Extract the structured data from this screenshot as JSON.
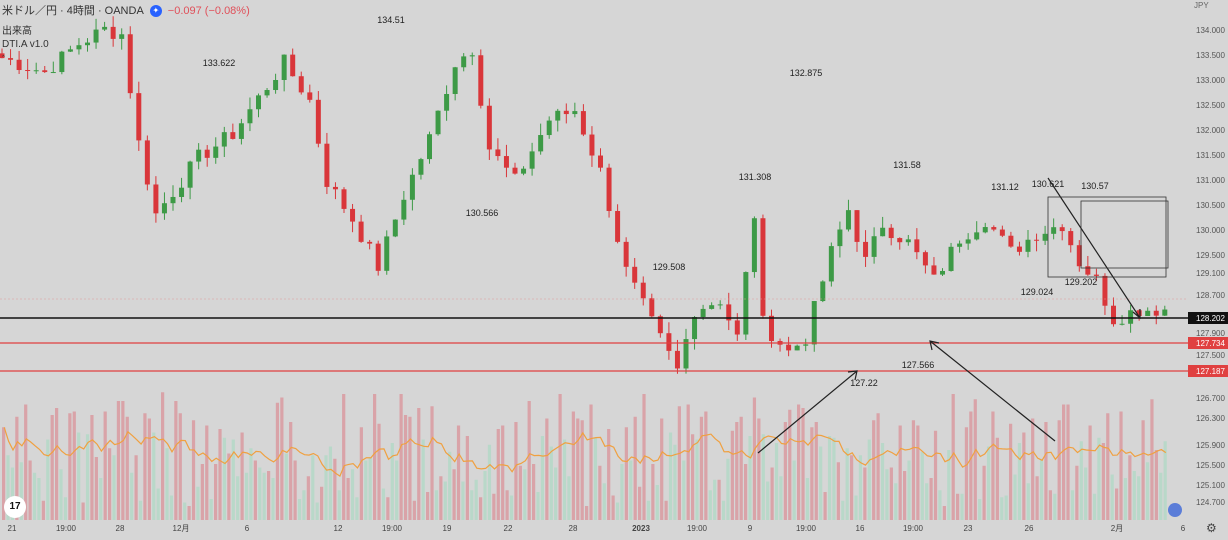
{
  "header": {
    "symbol": "米ドル／円 · 4時間 · OANDA",
    "change": "−0.097 (−0.08%)",
    "volume_label": "出来高",
    "indicator_label": "DTI.A v1.0",
    "currency": "JPY"
  },
  "chart_data": {
    "type": "candlestick",
    "y_axis_ticks": [
      "134.000",
      "133.500",
      "133.000",
      "132.500",
      "132.000",
      "131.500",
      "131.000",
      "130.500",
      "130.000",
      "129.500",
      "129.100",
      "128.700",
      "128.202",
      "127.900",
      "127.734",
      "127.500",
      "127.187",
      "126.700",
      "126.300",
      "125.900",
      "125.500",
      "125.100",
      "124.700"
    ],
    "x_axis_ticks": [
      "21",
      "19:00",
      "28",
      "12月",
      "6",
      "12",
      "19:00",
      "19",
      "22",
      "28",
      "2023",
      "19:00",
      "9",
      "19:00",
      "16",
      "19:00",
      "23",
      "26",
      "2月",
      "6"
    ],
    "price_labels": [
      "133.622",
      "134.51",
      "130.566",
      "129.508",
      "131.308",
      "132.875",
      "131.58",
      "127.22",
      "127.566",
      "131.12",
      "130.621",
      "130.57",
      "129.024",
      "129.202"
    ],
    "price_lines": [
      {
        "value": "128.202",
        "color": "#111111"
      },
      {
        "value": "127.734",
        "color": "#e04040"
      },
      {
        "value": "127.187",
        "color": "#e04040"
      }
    ],
    "colors": {
      "up": "#3d9a46",
      "down": "#d9363a",
      "vol_up": "#b9d8c9",
      "vol_down": "#d9a3a8",
      "ma": "#f0a040"
    },
    "keypoints": [
      [
        0,
        133.9
      ],
      [
        5,
        133.6
      ],
      [
        9,
        134.2
      ],
      [
        12,
        134.5
      ],
      [
        14,
        134.4
      ],
      [
        16,
        132.1
      ],
      [
        18,
        130.6
      ],
      [
        23,
        131.8
      ],
      [
        27,
        132.3
      ],
      [
        33,
        133.8
      ],
      [
        36,
        133.0
      ],
      [
        38,
        131.3
      ],
      [
        41,
        130.5
      ],
      [
        44,
        129.5
      ],
      [
        47,
        131.0
      ],
      [
        50,
        132.2
      ],
      [
        53,
        133.8
      ],
      [
        55,
        134.1
      ],
      [
        57,
        132.0
      ],
      [
        60,
        131.3
      ],
      [
        64,
        132.6
      ],
      [
        67,
        132.8
      ],
      [
        70,
        131.5
      ],
      [
        73,
        129.4
      ],
      [
        76,
        128.3
      ],
      [
        79,
        127.3
      ],
      [
        81,
        128.6
      ],
      [
        84,
        128.8
      ],
      [
        86,
        128.0
      ],
      [
        88,
        130.6
      ],
      [
        89,
        128.3
      ],
      [
        92,
        127.7
      ],
      [
        94,
        128.0
      ],
      [
        97,
        129.8
      ],
      [
        99,
        130.7
      ],
      [
        101,
        129.6
      ],
      [
        103,
        130.4
      ],
      [
        106,
        130.0
      ],
      [
        109,
        129.2
      ],
      [
        112,
        130.1
      ],
      [
        115,
        130.5
      ],
      [
        118,
        129.8
      ],
      [
        121,
        130.2
      ],
      [
        124,
        130.4
      ],
      [
        126,
        129.6
      ],
      [
        128,
        129.2
      ],
      [
        130,
        128.4
      ],
      [
        133,
        128.6
      ],
      [
        136,
        128.6
      ]
    ],
    "volumes": [
      53,
      37,
      30,
      59,
      33,
      66,
      34,
      27,
      24,
      11,
      46,
      60,
      64,
      29,
      13,
      61,
      62,
      50,
      10,
      49,
      60,
      36,
      24,
      62,
      41,
      37,
      68,
      68,
      59,
      27,
      37,
      11,
      61,
      58,
      50,
      18,
      73,
      41,
      14,
      68,
      61,
      10,
      8,
      57,
      19,
      32,
      54,
      12,
      32,
      52,
      47,
      38,
      46,
      25,
      50,
      27,
      41,
      34,
      30,
      27,
      28,
      24,
      67,
      70,
      38,
      56,
      34,
      12,
      17,
      25,
      37,
      10,
      19,
      37,
      42,
      35,
      17,
      72,
      24,
      29,
      13,
      53,
      34,
      36,
      72,
      55,
      18,
      13,
      44,
      34,
      72,
      60,
      59,
      11,
      64,
      46,
      16,
      65,
      17,
      25,
      22,
      39,
      29,
      54,
      22,
      48,
      17,
      23,
      13,
      28,
      43,
      15,
      52,
      54,
      17,
      14,
      56,
      31,
      29,
      68,
      32,
      16,
      48,
      58,
      42,
      30,
      72,
      46,
      25,
      62,
      58,
      57,
      8,
      66,
      47,
      31,
      21,
      52,
      14,
      10,
      32,
      53,
      34,
      59,
      19,
      72,
      11,
      32,
      20,
      58,
      11,
      50,
      43,
      65,
      34,
      66,
      49,
      46,
      59,
      62,
      17,
      23,
      23,
      11,
      35,
      51,
      56,
      59,
      32,
      48,
      70,
      58,
      49,
      22,
      30,
      44,
      25,
      56,
      63,
      34,
      66,
      64,
      24,
      53,
      56,
      42,
      16,
      48,
      47,
      33,
      11,
      41,
      37,
      14,
      37,
      30,
      46,
      57,
      61,
      44,
      29,
      30,
      21,
      54,
      28,
      34,
      57,
      54,
      39,
      21,
      24,
      51,
      17,
      8,
      40,
      72,
      15,
      15,
      53,
      62,
      69,
      12,
      31,
      42,
      62,
      47,
      13,
      14,
      55,
      26,
      44,
      50,
      21,
      58,
      25,
      35,
      56,
      17,
      15,
      57,
      66,
      66,
      17,
      31,
      45,
      30,
      54,
      15,
      47,
      44,
      61,
      26,
      18,
      62,
      24,
      37,
      28,
      25,
      57,
      33,
      69,
      40,
      27,
      45
    ]
  }
}
